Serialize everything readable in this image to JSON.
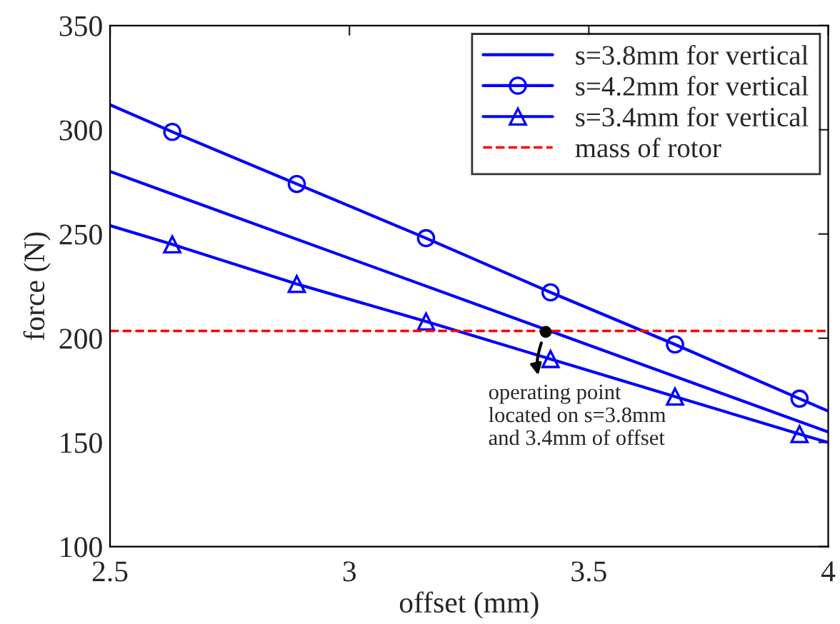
{
  "chart_data": {
    "type": "line",
    "xlabel": "offset (mm)",
    "ylabel": "force (N)",
    "xlim": [
      2.5,
      4
    ],
    "xticks": [
      2.5,
      3,
      3.5,
      4
    ],
    "ylim": [
      100,
      350
    ],
    "yticks": [
      100,
      150,
      200,
      250,
      300,
      350
    ],
    "grid": false,
    "legend": "top right",
    "line_style": "solid",
    "series": [
      {
        "name": "s=3.8mm for vertical",
        "color": "#0000ff",
        "marker": "none",
        "x": [
          2.5,
          4
        ],
        "values": [
          280,
          155
        ]
      },
      {
        "name": "s=4.2mm for vertical",
        "color": "#0000ff",
        "marker": "circle",
        "x": [
          2.5,
          2.63,
          2.89,
          3.16,
          3.42,
          3.68,
          3.94,
          4
        ],
        "values": [
          312,
          299,
          274,
          248,
          222,
          197,
          171,
          165
        ]
      },
      {
        "name": "s=3.4mm for vertical",
        "color": "#0000ff",
        "marker": "triangle",
        "x": [
          2.5,
          2.63,
          2.89,
          3.16,
          3.42,
          3.68,
          3.94,
          4
        ],
        "values": [
          254,
          245,
          226,
          208,
          190,
          172,
          154,
          150
        ]
      }
    ],
    "ref_lines": [
      {
        "axis": "y",
        "value": 203.5,
        "label": "mass of rotor",
        "color": "#ff0000",
        "line_style": "dashed"
      }
    ],
    "annotations": [
      {
        "text": "operating point\nlocated on s=3.8mm\nand 3.4mm of offset",
        "x": 3.41,
        "y": 203
      }
    ]
  }
}
